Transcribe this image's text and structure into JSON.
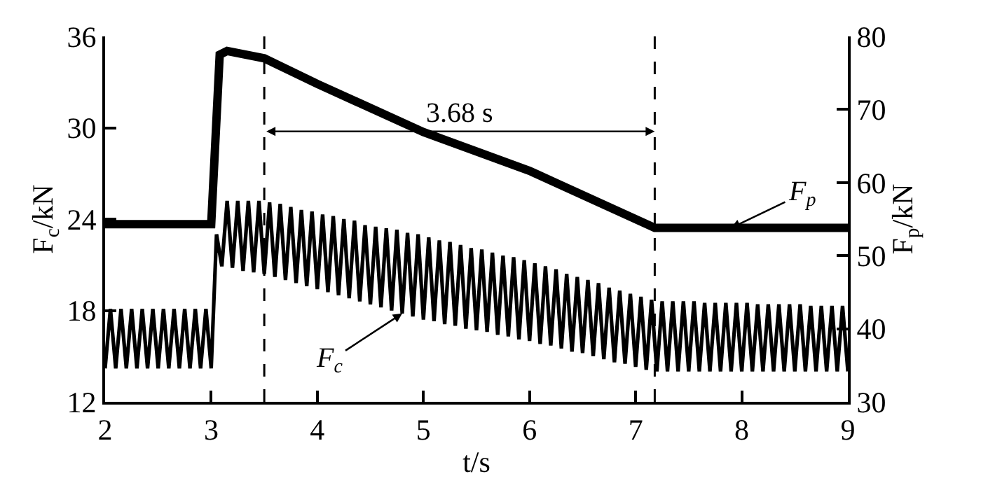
{
  "chart_data": {
    "type": "line",
    "xlabel": "t/s",
    "ylabel": "F$_{c}$/kN",
    "y2label": "F$_{p}$/kN",
    "xlim": [
      2,
      9
    ],
    "xticks": [
      2,
      3,
      4,
      5,
      6,
      7,
      8,
      9
    ],
    "ylim": [
      12,
      36
    ],
    "yticks": [
      12,
      18,
      24,
      30,
      36
    ],
    "y2lim": [
      30,
      80
    ],
    "y2ticks": [
      30,
      40,
      50,
      60,
      70,
      80
    ],
    "legend": false,
    "marker": "none",
    "line_style": "solid",
    "series": [
      {
        "name": "F$_{c}$",
        "color": "#000000",
        "x": [
          2,
          2.05,
          2.1,
          2.15,
          2.2,
          2.25,
          2.3,
          2.35,
          2.4,
          2.45,
          2.5,
          2.55,
          2.6,
          2.65,
          2.7,
          2.75,
          2.8,
          2.85,
          2.9,
          2.95,
          3,
          3.05,
          3.1,
          3.15,
          3.2,
          3.25,
          3.3,
          3.35,
          3.4,
          3.45,
          3.5,
          3.55,
          3.6,
          3.65,
          3.7,
          3.75,
          3.8,
          3.85,
          3.9,
          3.95,
          4,
          4.05,
          4.1,
          4.15,
          4.2,
          4.25,
          4.3,
          4.35,
          4.4,
          4.45,
          4.5,
          4.55,
          4.6,
          4.65,
          4.7,
          4.75,
          4.8,
          4.85,
          4.9,
          4.95,
          5,
          5.05,
          5.1,
          5.15,
          5.2,
          5.25,
          5.3,
          5.35,
          5.4,
          5.45,
          5.5,
          5.55,
          5.6,
          5.65,
          5.7,
          5.75,
          5.8,
          5.85,
          5.9,
          5.95,
          6,
          6.05,
          6.1,
          6.15,
          6.2,
          6.25,
          6.3,
          6.35,
          6.4,
          6.45,
          6.5,
          6.55,
          6.6,
          6.65,
          6.7,
          6.75,
          6.8,
          6.85,
          6.9,
          6.95,
          7,
          7.05,
          7.1,
          7.15,
          7.2,
          7.25,
          7.3,
          7.35,
          7.4,
          7.45,
          7.5,
          7.55,
          7.6,
          7.65,
          7.7,
          7.75,
          7.8,
          7.85,
          7.9,
          7.95,
          8,
          8.05,
          8.1,
          8.15,
          8.2,
          8.25,
          8.3,
          8.35,
          8.4,
          8.45,
          8.5,
          8.55,
          8.6,
          8.65,
          8.7,
          8.75,
          8.8,
          8.85,
          8.9,
          8.95,
          9
        ],
        "values": [
          14.2,
          18.1,
          14.2,
          18.1,
          14.2,
          18.1,
          14.2,
          18.1,
          14.2,
          18.1,
          14.2,
          18.1,
          14.2,
          18.1,
          14.2,
          18.1,
          14.2,
          18.1,
          14.2,
          18.1,
          14.2,
          23.0,
          20.9,
          25.2,
          20.8,
          25.2,
          20.6,
          25.2,
          20.5,
          25.2,
          20.4,
          25.1,
          20.2,
          25.0,
          20.0,
          24.8,
          19.8,
          24.6,
          19.6,
          24.5,
          19.4,
          24.3,
          19.2,
          24.2,
          19.0,
          24.0,
          18.8,
          23.9,
          18.6,
          23.6,
          18.4,
          23.5,
          18.2,
          23.4,
          18.0,
          23.3,
          17.8,
          23.1,
          17.6,
          23.0,
          17.4,
          22.8,
          17.3,
          22.6,
          17.1,
          22.5,
          17.0,
          22.3,
          16.8,
          22.1,
          16.7,
          22.0,
          16.6,
          21.8,
          16.4,
          21.6,
          16.3,
          21.5,
          16.1,
          21.3,
          16.0,
          21.1,
          15.8,
          20.9,
          15.7,
          20.7,
          15.5,
          20.4,
          15.3,
          20.2,
          15.2,
          20.0,
          15.0,
          19.8,
          14.8,
          19.5,
          14.6,
          19.3,
          14.5,
          19.1,
          14.3,
          18.9,
          14.1,
          18.7,
          14.0,
          18.6,
          14.0,
          18.6,
          14.0,
          18.6,
          14.0,
          18.6,
          14.0,
          18.5,
          14.0,
          18.5,
          14.0,
          18.5,
          14.0,
          18.5,
          14.0,
          18.5,
          14.0,
          18.4,
          14.0,
          18.4,
          14.0,
          18.4,
          14.0,
          18.4,
          14.0,
          18.4,
          14.0,
          18.3,
          14.0,
          18.3,
          14.0,
          18.3,
          14.0,
          18.3,
          14.0
        ]
      },
      {
        "name": "F$_{p}$",
        "color": "#000000",
        "axis": "y2",
        "x": [
          2,
          3.0,
          3.08,
          3.15,
          3.5,
          4,
          5,
          6,
          7.18,
          7.9,
          9
        ],
        "values": [
          54.3,
          54.3,
          77.5,
          78.0,
          77.0,
          73.5,
          66.9,
          61.6,
          53.8,
          53.8,
          53.8
        ]
      }
    ],
    "ref_lines": [
      {
        "axis": "x",
        "value": 3.5,
        "color": "#000000",
        "line_style": "dashed"
      },
      {
        "axis": "x",
        "value": 7.18,
        "color": "#000000",
        "line_style": "dashed"
      }
    ],
    "annotations": [
      "3.68 s"
    ]
  }
}
